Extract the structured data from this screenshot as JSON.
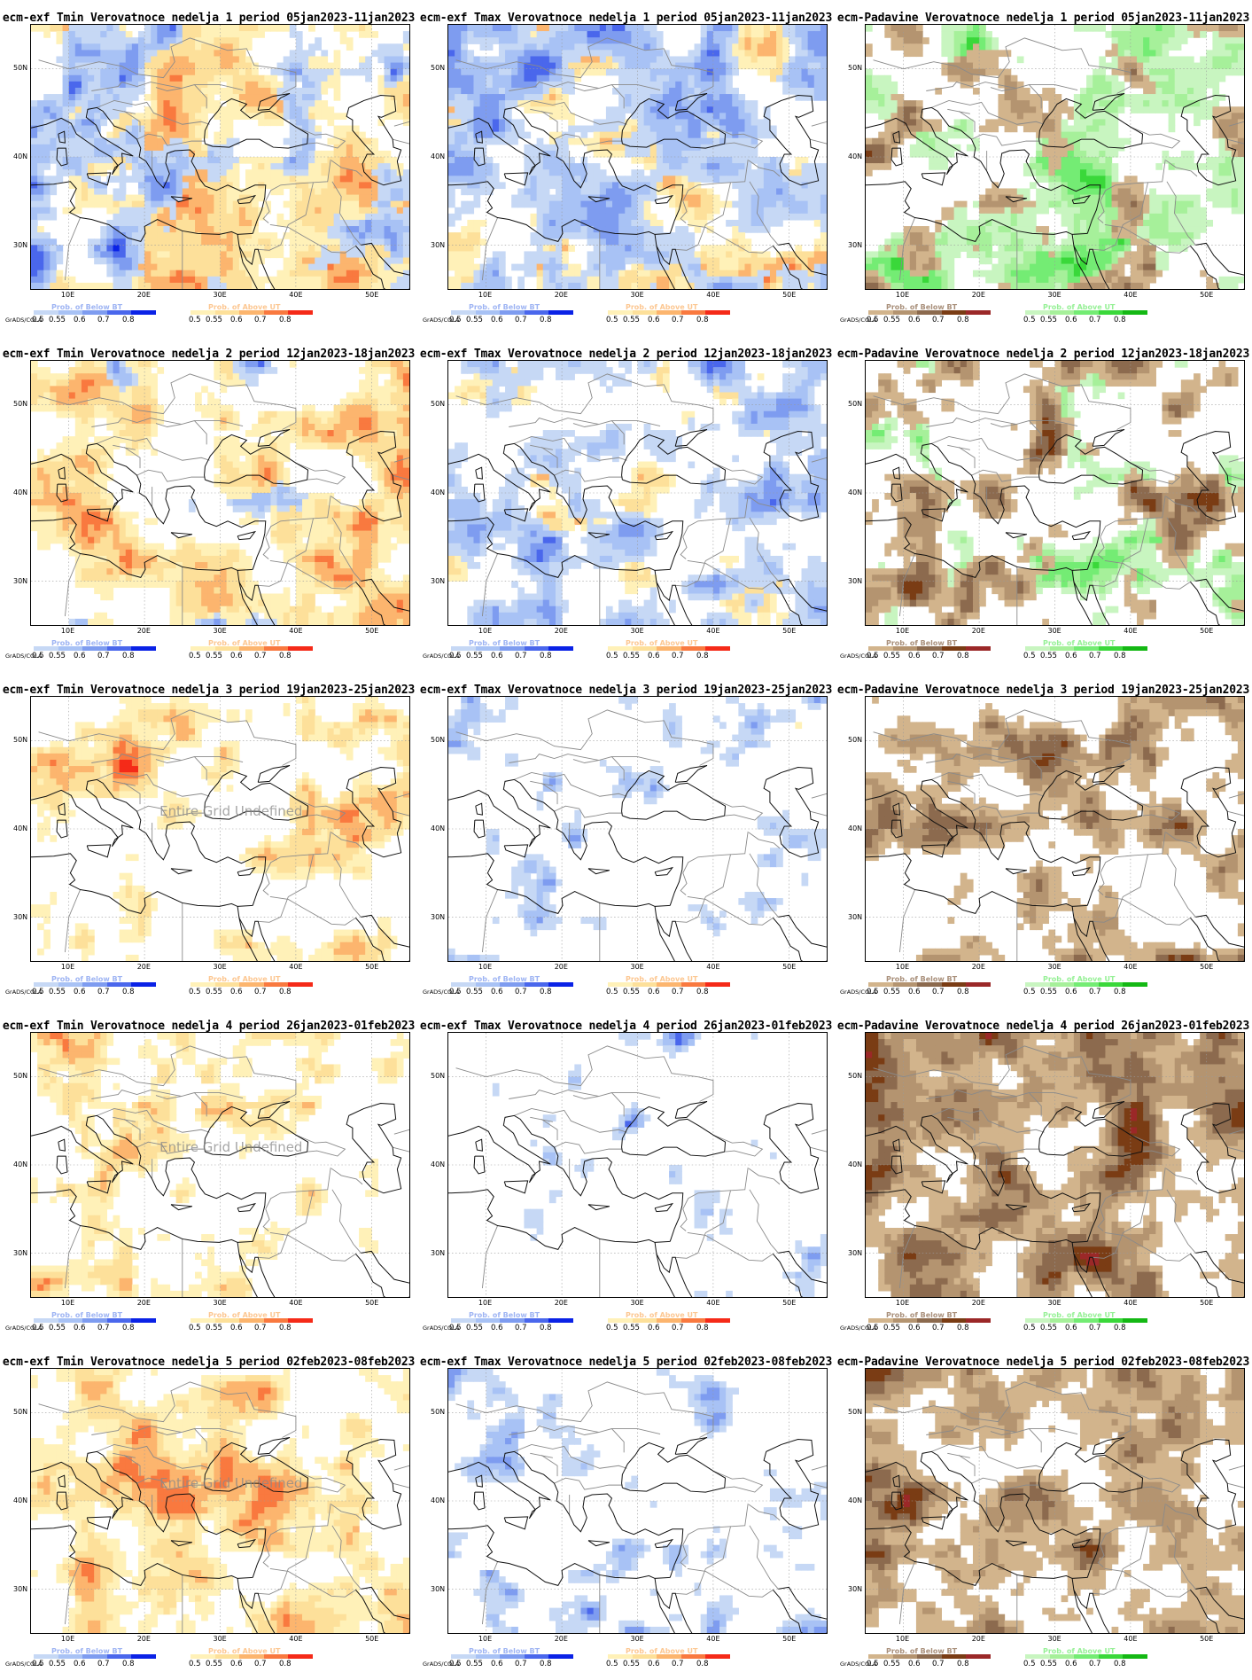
{
  "footer_label": "GrADS/COLA",
  "tick_labels": [
    "0.5",
    "0.55",
    "0.6",
    "0.7",
    "0.8"
  ],
  "lat_labels": [
    "50N",
    "40N",
    "30N"
  ],
  "lon_labels": [
    "10E",
    "20E",
    "30E",
    "40E",
    "50E"
  ],
  "undefined_label": "Entire Grid Undefined",
  "legend_titles": {
    "below": "Prob. of Below BT",
    "above": "Prob. of Above UT"
  },
  "palettes": {
    "cold": [
      "#c6d8f5",
      "#a8c2f5",
      "#7e9cf0",
      "#4a67ec",
      "#0a22e6"
    ],
    "warm": [
      "#fff1b8",
      "#fde09a",
      "#fcb56e",
      "#f9793f",
      "#f52a18"
    ],
    "dry": [
      "#d2b48c",
      "#b49470",
      "#8c6a4e",
      "#7a3c14",
      "#9b2828"
    ],
    "wet": [
      "#c8f5c0",
      "#a6f09a",
      "#74ec74",
      "#3ad83a",
      "#14b814"
    ]
  },
  "rows": [
    {
      "panels": [
        {
          "title": "ecm-exf Tmin Verovatnoce nedelja 1 period 05jan2023-11jan2023",
          "kind": "temp",
          "cold": 0.55,
          "warm": 0.85,
          "undefined": false
        },
        {
          "title": "ecm-exf Tmax Verovatnoce nedelja 1 period 05jan2023-11jan2023",
          "kind": "temp",
          "cold": 0.75,
          "warm": 0.6,
          "undefined": false
        },
        {
          "title": "ecm-Padavine Verovatnoce nedelja 1 period 05jan2023-11jan2023",
          "kind": "precip",
          "dry": 0.6,
          "wet": 0.7,
          "undefined": false
        }
      ]
    },
    {
      "panels": [
        {
          "title": "ecm-exf Tmin Verovatnoce nedelja 2 period 12jan2023-18jan2023",
          "kind": "temp",
          "cold": 0.35,
          "warm": 0.75,
          "undefined": false
        },
        {
          "title": "ecm-exf Tmax Verovatnoce nedelja 2 period 12jan2023-18jan2023",
          "kind": "temp",
          "cold": 0.7,
          "warm": 0.45,
          "undefined": false
        },
        {
          "title": "ecm-Padavine Verovatnoce nedelja 2 period 12jan2023-18jan2023",
          "kind": "precip",
          "dry": 0.6,
          "wet": 0.55,
          "undefined": false
        }
      ]
    },
    {
      "panels": [
        {
          "title": "ecm-exf Tmin Verovatnoce nedelja 3 period 19jan2023-25jan2023",
          "kind": "temp",
          "cold": 0.0,
          "warm": 0.6,
          "undefined": true
        },
        {
          "title": "ecm-exf Tmax Verovatnoce nedelja 3 period 19jan2023-25jan2023",
          "kind": "temp",
          "cold": 0.5,
          "warm": 0.15,
          "undefined": false
        },
        {
          "title": "ecm-Padavine Verovatnoce nedelja 3 period 19jan2023-25jan2023",
          "kind": "precip",
          "dry": 0.7,
          "wet": 0.15,
          "undefined": false
        }
      ]
    },
    {
      "panels": [
        {
          "title": "ecm-exf Tmin Verovatnoce nedelja 4 period 26jan2023-01feb2023",
          "kind": "temp",
          "cold": 0.0,
          "warm": 0.55,
          "undefined": true
        },
        {
          "title": "ecm-exf Tmax Verovatnoce nedelja 4 period 26jan2023-01feb2023",
          "kind": "temp",
          "cold": 0.45,
          "warm": 0.15,
          "undefined": false
        },
        {
          "title": "ecm-Padavine Verovatnoce nedelja 4 period 26jan2023-01feb2023",
          "kind": "precip",
          "dry": 0.8,
          "wet": 0.0,
          "undefined": false
        }
      ]
    },
    {
      "panels": [
        {
          "title": "ecm-exf Tmin Verovatnoce nedelja 5 period 02feb2023-08feb2023",
          "kind": "temp",
          "cold": 0.0,
          "warm": 0.7,
          "undefined": true
        },
        {
          "title": "ecm-exf Tmax Verovatnoce nedelja 5 period 02feb2023-08feb2023",
          "kind": "temp",
          "cold": 0.5,
          "warm": 0.1,
          "undefined": false
        },
        {
          "title": "ecm-Padavine Verovatnoce nedelja 5 period 02feb2023-08feb2023",
          "kind": "precip",
          "dry": 0.85,
          "wet": 0.1,
          "undefined": false
        }
      ]
    }
  ]
}
